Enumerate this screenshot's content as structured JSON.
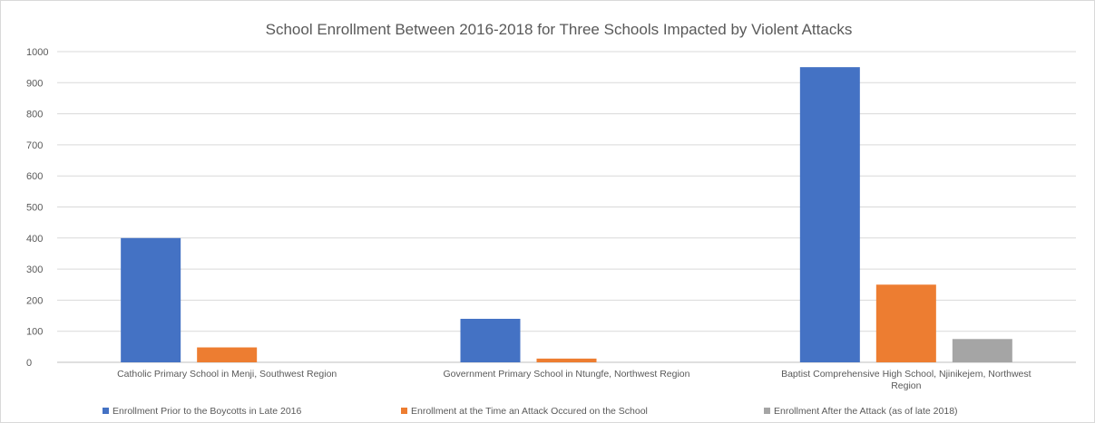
{
  "chart_data": {
    "type": "bar",
    "title": "School Enrollment Between 2016-2018 for Three Schools Impacted by Violent Attacks",
    "xlabel": "",
    "ylabel": "",
    "ylim": [
      0,
      1000
    ],
    "yticks": [
      0,
      100,
      200,
      300,
      400,
      500,
      600,
      700,
      800,
      900,
      1000
    ],
    "grid": true,
    "legend_position": "bottom",
    "categories": [
      [
        "Catholic Primary School in Menji, Southwest Region"
      ],
      [
        "Government Primary School in Ntungfe, Northwest Region"
      ],
      [
        "Baptist Comprehensive High School, Njinikejem, Northwest",
        "Region"
      ]
    ],
    "series": [
      {
        "name": "Enrollment Prior to the Boycotts in Late 2016",
        "color": "#4472C4",
        "values": [
          400,
          140,
          950
        ]
      },
      {
        "name": "Enrollment at the Time an Attack Occured on the School",
        "color": "#ED7D31",
        "values": [
          48,
          12,
          250
        ]
      },
      {
        "name": "Enrollment After the Attack (as of late 2018)",
        "color": "#A5A5A5",
        "values": [
          0,
          0,
          75
        ]
      }
    ]
  }
}
